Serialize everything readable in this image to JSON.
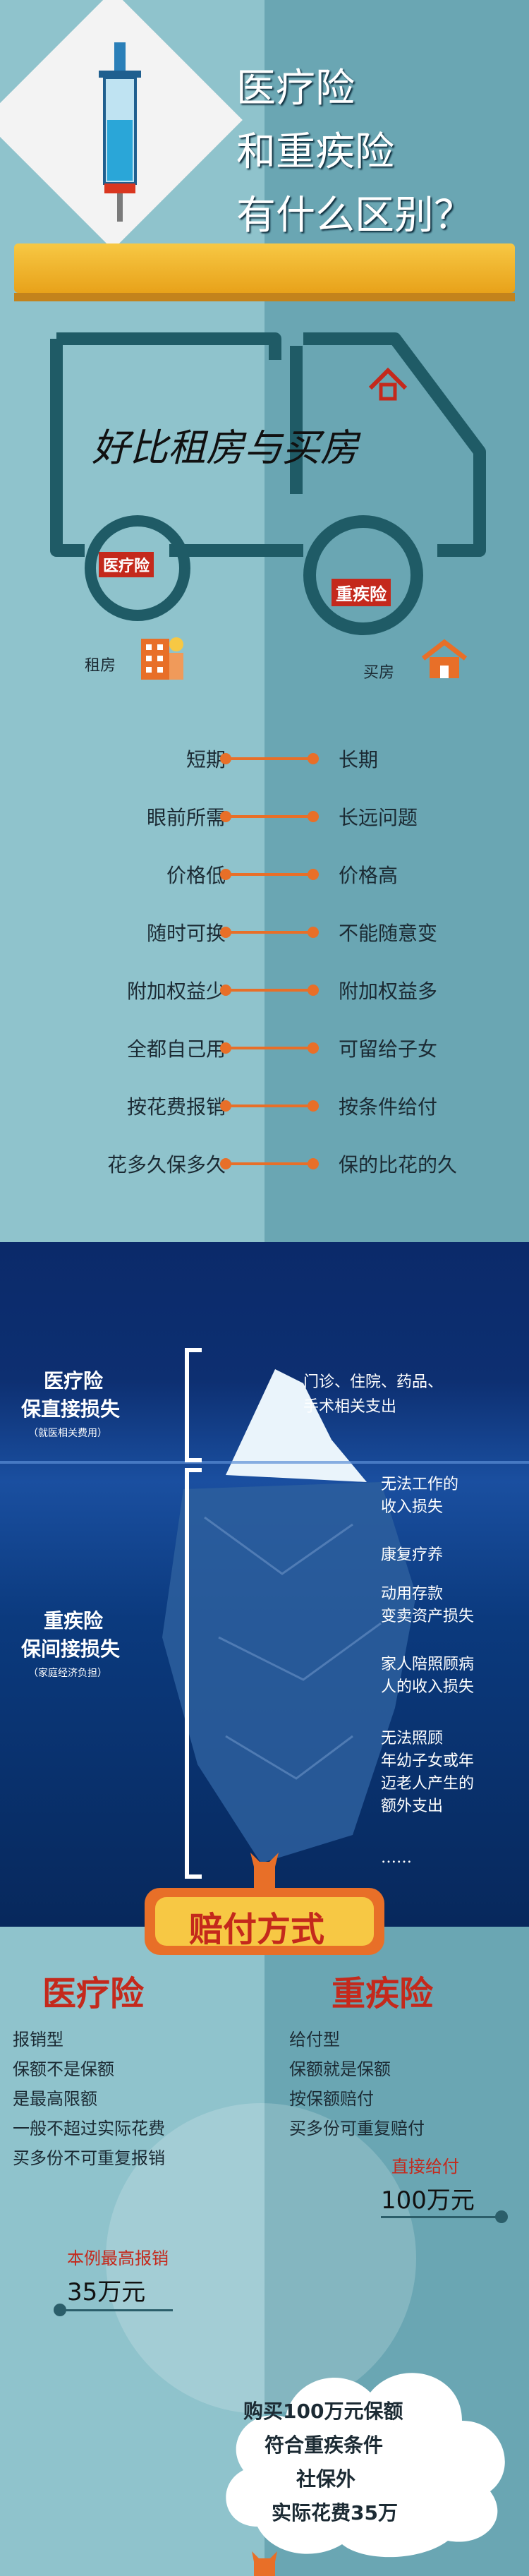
{
  "header": {
    "title_line1": "医疗险",
    "title_line2": "和重疾险",
    "title_line3": "有什么区别？"
  },
  "truck": {
    "tagline": "好比租房与买房",
    "wheel_left": "医疗险",
    "wheel_right": "重疾险",
    "label_left": "租房",
    "label_right": "买房"
  },
  "compare": {
    "left": [
      "短期",
      "眼前所需",
      "价格低",
      "随时可换",
      "附加权益少",
      "全都自己用",
      "按花费报销",
      "花多久保多久"
    ],
    "right": [
      "长期",
      "长远问题",
      "价格高",
      "不能随意变",
      "附加权益多",
      "可留给子女",
      "按条件给付",
      "保的比花的久"
    ]
  },
  "iceberg": {
    "top_label_line1": "医疗险",
    "top_label_line2": "保直接损失",
    "top_label_note": "（就医相关费用）",
    "top_desc_line1": "门诊、住院、药品、",
    "top_desc_line2": "手术相关支出",
    "bottom_label_line1": "重疾险",
    "bottom_label_line2": "保间接损失",
    "bottom_label_note": "（家庭经济负担）",
    "losses": [
      [
        "无法工作的",
        "收入损失"
      ],
      [
        "康复疗养"
      ],
      [
        "动用存款",
        "变卖资产损失"
      ],
      [
        "家人陪照顾病",
        "人的收入损失"
      ],
      [
        "无法照顾",
        "年幼子女或年",
        "迈老人产生的",
        "额外支出"
      ],
      [
        "……"
      ]
    ]
  },
  "payout": {
    "banner": "赔付方式",
    "left_title": "医疗险",
    "left_lines": [
      "报销型",
      "保额不是保额",
      "是最高限额",
      "一般不超过实际花费",
      "买多份不可重复报销"
    ],
    "right_title": "重疾险",
    "right_lines": [
      "给付型",
      "保额就是保额",
      "按保额赔付",
      "买多份可重复赔付"
    ],
    "right_pay_label": "直接给付",
    "right_pay_amount": "100万元",
    "left_pay_label": "本例最高报销",
    "left_pay_amount": "35万元",
    "cloud_lines": [
      "购买100万元保额",
      "符合重疾条件",
      "社保外",
      "实际花费35万"
    ]
  },
  "colors": {
    "accent": "#e86f28",
    "teal_light": "#8fc3cc",
    "teal_dark": "#6aa6b3",
    "title_red": "#c4291c"
  }
}
